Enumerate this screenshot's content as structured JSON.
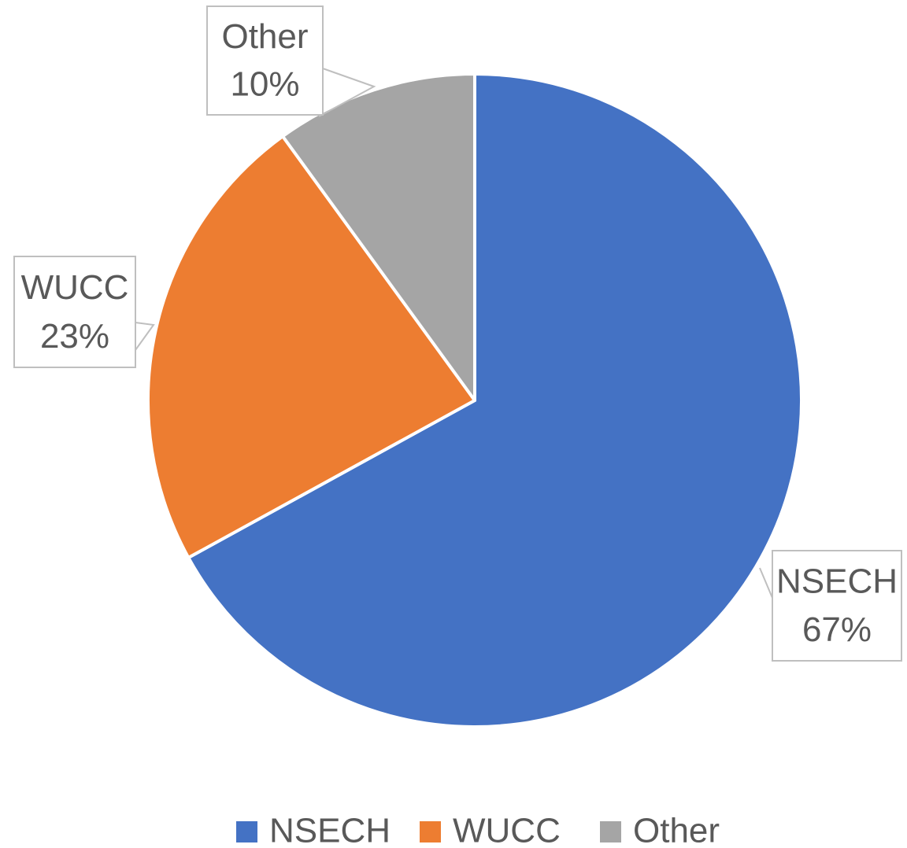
{
  "chart_data": {
    "type": "pie",
    "categories": [
      "NSECH",
      "WUCC",
      "Other"
    ],
    "values": [
      67,
      23,
      10
    ],
    "value_labels": [
      "67%",
      "23%",
      "10%"
    ],
    "colors": [
      "#4472c4",
      "#ed7d31",
      "#a5a5a5"
    ],
    "legend": "bottom"
  }
}
